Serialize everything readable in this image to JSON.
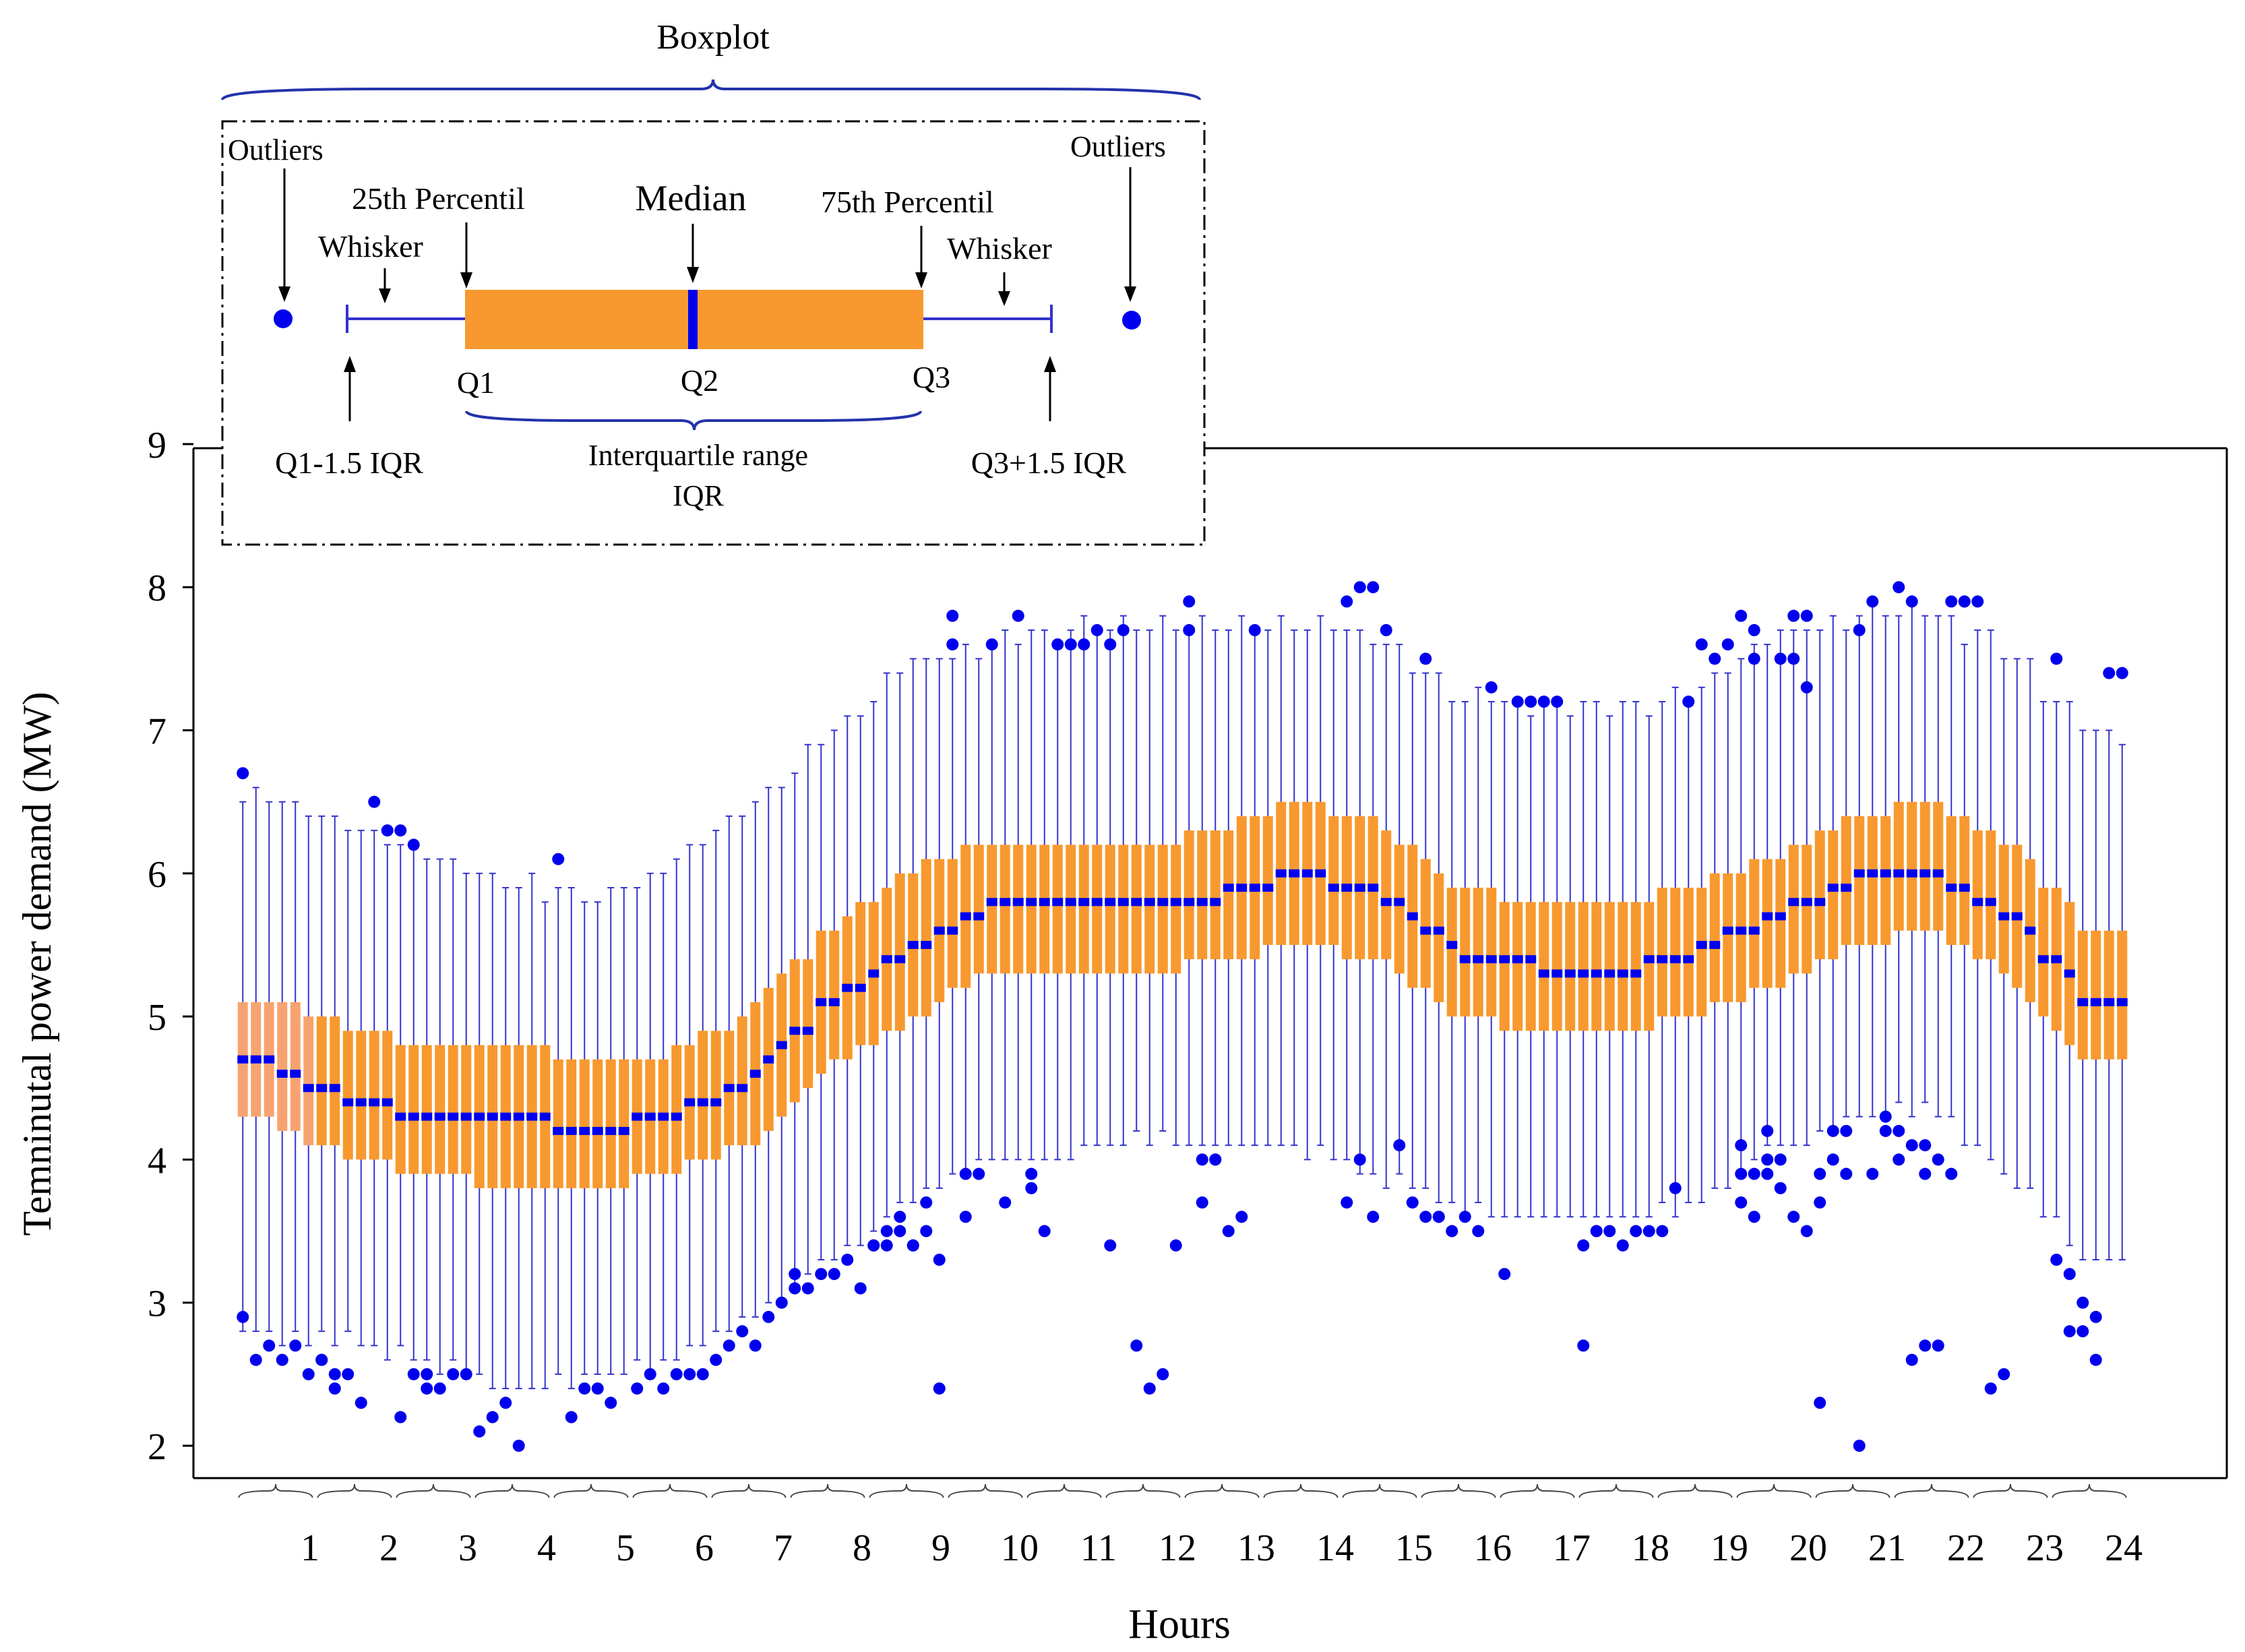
{
  "chart_data": {
    "type": "boxplot",
    "title": "",
    "xlabel": "Hours",
    "ylabel": "Temninutal power demand (MW)",
    "ylim": [
      2,
      9
    ],
    "yticks": [
      "2",
      "3",
      "4",
      "5",
      "6",
      "7",
      "8",
      "9"
    ],
    "hours": [
      "1",
      "2",
      "3",
      "4",
      "5",
      "6",
      "7",
      "8",
      "9",
      "10",
      "11",
      "12",
      "13",
      "14",
      "15",
      "16",
      "17",
      "18",
      "19",
      "20",
      "21",
      "22",
      "23",
      "24"
    ],
    "boxes_per_hour": 6,
    "hourly_median_profile": [
      4.65,
      4.4,
      4.3,
      4.3,
      4.2,
      4.3,
      4.5,
      5.1,
      5.45,
      5.75,
      5.8,
      5.8,
      5.85,
      6.0,
      5.85,
      5.45,
      5.35,
      5.3,
      5.45,
      5.7,
      5.95,
      6.0,
      5.7,
      5.1
    ],
    "hourly_q1_profile": [
      4.25,
      4.0,
      3.9,
      3.8,
      3.8,
      3.9,
      4.1,
      4.65,
      4.95,
      5.3,
      5.3,
      5.3,
      5.4,
      5.5,
      5.4,
      5.0,
      4.9,
      4.9,
      5.0,
      5.2,
      5.5,
      5.6,
      5.3,
      4.65
    ],
    "hourly_q3_profile": [
      5.1,
      4.9,
      4.8,
      4.8,
      4.7,
      4.75,
      5.0,
      5.6,
      6.0,
      6.2,
      6.2,
      6.2,
      6.3,
      6.5,
      6.35,
      5.9,
      5.8,
      5.8,
      5.9,
      6.1,
      6.4,
      6.5,
      6.2,
      5.6
    ],
    "hourly_whisker_low": [
      2.8,
      2.75,
      2.6,
      2.4,
      2.5,
      2.6,
      2.9,
      3.3,
      3.7,
      4.0,
      4.05,
      4.2,
      4.1,
      4.1,
      3.9,
      3.7,
      3.6,
      3.6,
      3.7,
      4.1,
      4.3,
      4.4,
      3.9,
      3.3
    ],
    "hourly_whisker_high": [
      6.45,
      6.3,
      6.05,
      5.9,
      5.75,
      6.0,
      6.4,
      6.9,
      7.4,
      7.55,
      7.65,
      7.7,
      7.65,
      7.7,
      7.6,
      7.2,
      7.1,
      7.1,
      7.2,
      7.6,
      7.75,
      7.75,
      7.5,
      6.9
    ],
    "outliers": [
      {
        "hour": 1,
        "values": [
          2.9,
          2.6,
          2.7,
          2.6,
          2.7,
          2.5,
          6.7
        ]
      },
      {
        "hour": 2,
        "values": [
          2.6,
          2.5,
          2.5,
          2.3,
          6.5,
          6.3,
          2.6,
          2.4
        ]
      },
      {
        "hour": 3,
        "values": [
          2.2,
          2.5,
          2.5,
          2.4,
          2.5,
          2.5,
          6.3,
          6.2,
          2.4
        ]
      },
      {
        "hour": 4,
        "values": [
          2.1,
          2.2,
          2.3,
          2.0
        ]
      },
      {
        "hour": 5,
        "values": [
          6.1,
          2.2,
          2.4,
          2.4,
          2.3
        ]
      },
      {
        "hour": 6,
        "values": [
          2.4,
          2.5,
          2.4,
          2.5,
          2.5,
          2.5
        ]
      },
      {
        "hour": 7,
        "values": [
          2.6,
          2.7,
          2.8,
          2.7,
          2.9,
          3.0
        ]
      },
      {
        "hour": 8,
        "values": [
          3.1,
          3.1,
          3.2,
          3.2,
          3.3,
          3.1,
          3.2
        ]
      },
      {
        "hour": 9,
        "values": [
          3.4,
          3.4,
          3.5,
          3.4,
          3.5,
          3.3,
          3.4,
          3.5,
          3.6,
          3.4,
          3.7,
          2.4
        ]
      },
      {
        "hour": 10,
        "values": [
          7.8,
          3.6,
          3.9,
          7.6,
          3.7,
          7.8,
          7.6,
          3.9
        ]
      },
      {
        "hour": 11,
        "values": [
          3.9,
          3.5,
          7.6,
          7.6,
          7.6,
          7.7,
          3.8
        ]
      },
      {
        "hour": 12,
        "values": [
          7.6,
          7.7,
          2.7,
          2.4,
          2.5,
          3.4,
          3.4
        ]
      },
      {
        "hour": 13,
        "values": [
          7.9,
          3.7,
          4.0,
          3.5,
          3.6,
          7.7,
          7.7,
          4.0,
          4.0
        ]
      },
      {
        "hour": 15,
        "values": [
          7.9,
          8.0,
          8.0,
          7.7,
          4.1,
          3.7,
          3.7,
          4.0,
          3.6
        ]
      },
      {
        "hour": 16,
        "values": [
          7.5,
          3.6,
          3.5,
          3.6,
          3.5,
          7.3,
          3.6,
          3.6
        ]
      },
      {
        "hour": 17,
        "values": [
          3.2,
          7.2,
          7.2,
          7.2,
          7.2
        ]
      },
      {
        "hour": 18,
        "values": [
          2.7,
          3.5,
          3.5,
          3.4,
          3.5,
          3.5,
          3.4,
          3.5
        ]
      },
      {
        "hour": 19,
        "values": [
          3.5,
          3.8,
          7.2,
          7.6,
          7.5,
          7.6
        ]
      },
      {
        "hour": 20,
        "values": [
          3.7,
          3.6,
          3.9,
          3.8,
          7.8,
          7.8,
          7.8,
          7.5,
          4.0,
          4.0,
          3.6,
          7.3,
          4.1,
          3.9,
          4.2,
          7.5,
          7.5,
          3.5,
          3.9,
          7.7
        ]
      },
      {
        "hour": 21,
        "values": [
          3.9,
          4.0,
          4.2,
          7.7,
          3.9,
          4.3,
          3.7,
          4.2,
          3.9,
          2.0,
          7.9,
          4.2,
          2.3
        ]
      },
      {
        "hour": 22,
        "values": [
          4.2,
          2.6,
          2.7,
          2.7,
          7.9,
          7.9,
          8.0,
          7.9,
          4.1,
          4.0,
          3.9,
          7.9,
          4.0,
          4.1,
          3.9
        ]
      },
      {
        "hour": 23,
        "values": [
          7.9,
          2.4,
          2.5
        ]
      },
      {
        "hour": 24,
        "values": [
          3.3,
          3.2,
          3.0,
          2.9,
          7.4,
          7.4,
          7.5,
          2.8,
          2.8,
          2.6
        ]
      }
    ],
    "box_color": "#f8992f",
    "box_color_early": "#f7a370",
    "median_color": "#0000ee",
    "whisker_color": "#3333cc",
    "outlier_color": "#0000ee"
  },
  "legend": {
    "title": "Boxplot",
    "outliers_left": "Outliers",
    "outliers_right": "Outliers",
    "p25": "25th Percentil",
    "median": "Median",
    "p75": "75th Percentil",
    "whisker_left": "Whisker",
    "whisker_right": "Whisker",
    "q1": "Q1",
    "q2": "Q2",
    "q3": "Q3",
    "lower_fence": "Q1-1.5 IQR",
    "iqr_line1": "Interquartile range",
    "iqr_line2": "IQR",
    "upper_fence": "Q3+1.5 IQR"
  }
}
